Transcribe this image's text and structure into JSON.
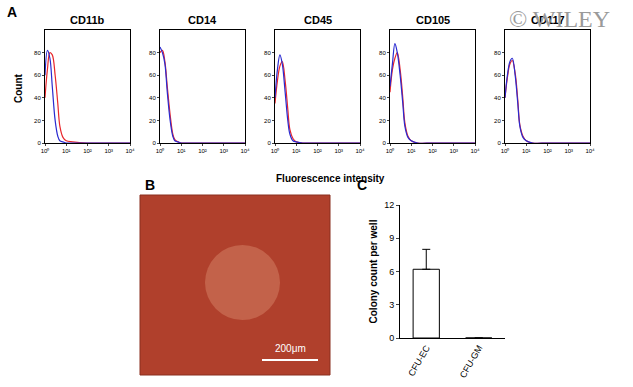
{
  "figure": {
    "panel_labels": [
      "A",
      "B",
      "C"
    ],
    "watermark": "© WILEY",
    "xlabel": "Fluorescence intensity",
    "ylabel": "Count"
  },
  "image": {
    "scale_bar": "200μm"
  },
  "chart_data": [
    {
      "type": "line",
      "title": "CD11b",
      "log": "x",
      "x": [
        1,
        1.3,
        1.7,
        2.2,
        3,
        4,
        5,
        7,
        10,
        20,
        100,
        1000,
        10000
      ],
      "series": [
        {
          "color": "#e8262b",
          "values": [
            40,
            65,
            80,
            78,
            60,
            35,
            15,
            5,
            2,
            1,
            0,
            0,
            0
          ]
        },
        {
          "color": "#2a2ad0",
          "values": [
            60,
            82,
            75,
            50,
            20,
            6,
            2,
            1,
            0,
            0,
            0,
            0,
            0
          ]
        }
      ],
      "xlim": [
        1,
        10000
      ],
      "xticks": [
        {
          "value": 1,
          "label": "10⁰"
        },
        {
          "value": 10,
          "label": "10¹"
        },
        {
          "value": 100,
          "label": "10²"
        },
        {
          "value": 1000,
          "label": "10³"
        },
        {
          "value": 10000,
          "label": "10⁴"
        }
      ],
      "ylim": [
        0,
        100
      ],
      "yticks": [
        0,
        20,
        40,
        60,
        80
      ]
    },
    {
      "type": "line",
      "title": "CD14",
      "log": "x",
      "x": [
        1,
        1.3,
        1.7,
        2.2,
        3,
        4,
        5,
        7,
        10,
        20,
        100,
        1000,
        10000
      ],
      "series": [
        {
          "color": "#e8262b",
          "values": [
            80,
            82,
            72,
            50,
            25,
            8,
            3,
            1,
            0,
            0,
            0,
            0,
            0
          ]
        },
        {
          "color": "#2a2ad0",
          "values": [
            85,
            80,
            70,
            45,
            20,
            6,
            2,
            1,
            0,
            0,
            0,
            0,
            0
          ]
        }
      ],
      "xlim": [
        1,
        10000
      ],
      "xticks": [
        {
          "value": 1,
          "label": "10⁰"
        },
        {
          "value": 10,
          "label": "10¹"
        },
        {
          "value": 100,
          "label": "10²"
        },
        {
          "value": 1000,
          "label": "10³"
        },
        {
          "value": 10000,
          "label": "10⁴"
        }
      ],
      "ylim": [
        0,
        100
      ],
      "yticks": [
        0,
        20,
        40,
        60,
        80
      ]
    },
    {
      "type": "line",
      "title": "CD45",
      "log": "x",
      "x": [
        1,
        1.3,
        1.7,
        2.2,
        3,
        4,
        5,
        7,
        10,
        20,
        100,
        1000,
        10000
      ],
      "series": [
        {
          "color": "#e8262b",
          "values": [
            35,
            55,
            68,
            72,
            55,
            30,
            12,
            4,
            1,
            0,
            0,
            0,
            0
          ]
        },
        {
          "color": "#2a2ad0",
          "values": [
            40,
            65,
            78,
            70,
            45,
            20,
            8,
            2,
            1,
            0,
            0,
            0,
            0
          ]
        }
      ],
      "xlim": [
        1,
        10000
      ],
      "xticks": [
        {
          "value": 1,
          "label": "10⁰"
        },
        {
          "value": 10,
          "label": "10¹"
        },
        {
          "value": 100,
          "label": "10²"
        },
        {
          "value": 1000,
          "label": "10³"
        },
        {
          "value": 10000,
          "label": "10⁴"
        }
      ],
      "ylim": [
        0,
        100
      ],
      "yticks": [
        0,
        20,
        40,
        60,
        80
      ]
    },
    {
      "type": "line",
      "title": "CD105",
      "log": "x",
      "x": [
        1,
        1.3,
        1.7,
        2.2,
        3,
        4,
        5,
        7,
        10,
        20,
        100,
        1000,
        10000
      ],
      "series": [
        {
          "color": "#e8262b",
          "values": [
            45,
            65,
            75,
            80,
            65,
            40,
            18,
            6,
            2,
            0,
            0,
            0,
            0
          ]
        },
        {
          "color": "#2a2ad0",
          "values": [
            50,
            70,
            88,
            80,
            60,
            35,
            15,
            5,
            2,
            0,
            0,
            0,
            0
          ]
        }
      ],
      "xlim": [
        1,
        10000
      ],
      "xticks": [
        {
          "value": 1,
          "label": "10⁰"
        },
        {
          "value": 10,
          "label": "10¹"
        },
        {
          "value": 100,
          "label": "10²"
        },
        {
          "value": 1000,
          "label": "10³"
        },
        {
          "value": 10000,
          "label": "10⁴"
        }
      ],
      "ylim": [
        0,
        100
      ],
      "yticks": [
        0,
        20,
        40,
        60,
        80
      ]
    },
    {
      "type": "line",
      "title": "CD117",
      "log": "x",
      "x": [
        1,
        1.3,
        1.7,
        2.2,
        3,
        4,
        5,
        7,
        10,
        20,
        100,
        1000,
        10000
      ],
      "series": [
        {
          "color": "#e8262b",
          "values": [
            40,
            58,
            70,
            73,
            62,
            38,
            16,
            6,
            2,
            0,
            0,
            0,
            0
          ]
        },
        {
          "color": "#2a2ad0",
          "values": [
            40,
            60,
            72,
            75,
            60,
            35,
            15,
            5,
            2,
            0,
            0,
            0,
            0
          ]
        }
      ],
      "xlim": [
        1,
        10000
      ],
      "xticks": [
        {
          "value": 1,
          "label": "10⁰"
        },
        {
          "value": 10,
          "label": "10¹"
        },
        {
          "value": 100,
          "label": "10²"
        },
        {
          "value": 1000,
          "label": "10³"
        },
        {
          "value": 10000,
          "label": "10⁴"
        }
      ],
      "ylim": [
        0,
        100
      ],
      "yticks": [
        0,
        20,
        40,
        60,
        80
      ]
    },
    {
      "type": "bar",
      "ylabel": "Colony count per well",
      "categories": [
        "CFU-EC",
        "CFU-GM"
      ],
      "values": [
        6.2,
        0
      ],
      "errors": [
        1.8,
        0
      ],
      "color": "#ffffff",
      "ylim": [
        0,
        12
      ],
      "yticks": [
        0,
        3,
        6,
        9,
        12
      ]
    }
  ]
}
